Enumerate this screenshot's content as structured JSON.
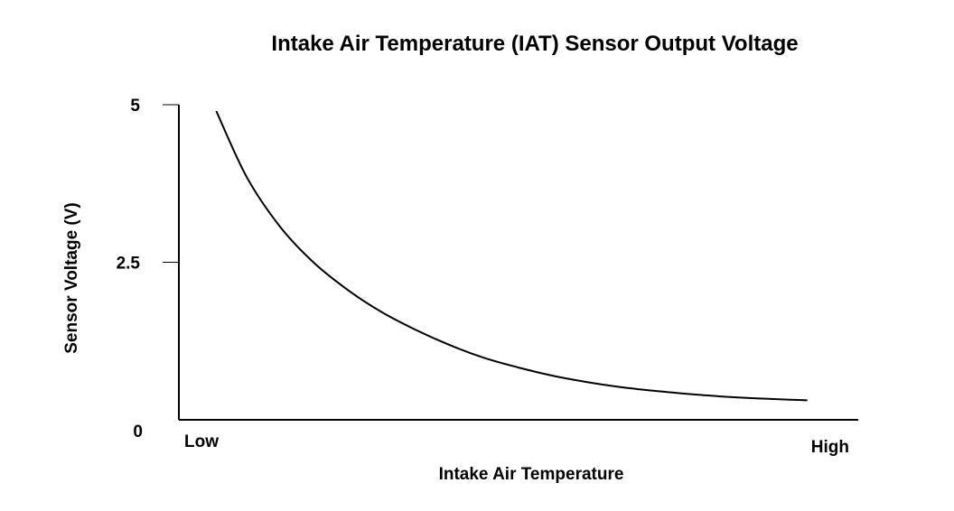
{
  "chart_data": {
    "type": "line",
    "title": "Intake Air Temperature (IAT) Sensor Output Voltage",
    "xlabel": "Intake Air Temperature",
    "ylabel": "Sensor Voltage (V)",
    "x_tick_labels": [
      "Low",
      "High"
    ],
    "y_ticks": [
      {
        "value": 5,
        "label": "5"
      },
      {
        "value": 2.5,
        "label": "2.5"
      },
      {
        "value": 0,
        "label": "0"
      }
    ],
    "xlim": [
      0,
      1
    ],
    "ylim": [
      0,
      5
    ],
    "grid": false,
    "legend": "none",
    "line_color": "#000000",
    "series": [
      {
        "x": [
          0.055,
          0.1,
          0.15,
          0.2,
          0.25,
          0.3,
          0.35,
          0.4,
          0.45,
          0.5,
          0.55,
          0.6,
          0.65,
          0.7,
          0.75,
          0.8,
          0.85,
          0.9,
          0.925
        ],
        "values": [
          4.9,
          3.85,
          3.05,
          2.48,
          2.05,
          1.7,
          1.42,
          1.18,
          0.98,
          0.83,
          0.7,
          0.6,
          0.52,
          0.46,
          0.41,
          0.37,
          0.34,
          0.32,
          0.31
        ]
      }
    ]
  }
}
